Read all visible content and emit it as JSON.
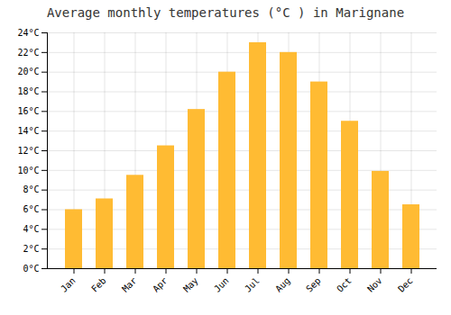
{
  "chart_data": {
    "type": "bar",
    "title": "Average monthly temperatures (°C ) in Marignane",
    "categories": [
      "Jan",
      "Feb",
      "Mar",
      "Apr",
      "May",
      "Jun",
      "Jul",
      "Aug",
      "Sep",
      "Oct",
      "Nov",
      "Dec"
    ],
    "values": [
      6.0,
      7.1,
      9.5,
      12.5,
      16.2,
      20.0,
      23.0,
      22.0,
      19.0,
      15.0,
      9.9,
      6.5
    ],
    "color": "#FFBB33",
    "ylim": [
      0,
      24
    ],
    "yticks": [
      {
        "value": 0,
        "label": "0°C"
      },
      {
        "value": 2,
        "label": "2°C"
      },
      {
        "value": 4,
        "label": "4°C"
      },
      {
        "value": 6,
        "label": "6°C"
      },
      {
        "value": 8,
        "label": "8°C"
      },
      {
        "value": 10,
        "label": "10°C"
      },
      {
        "value": 12,
        "label": "12°C"
      },
      {
        "value": 14,
        "label": "14°C"
      },
      {
        "value": 16,
        "label": "16°C"
      },
      {
        "value": 18,
        "label": "18°C"
      },
      {
        "value": 20,
        "label": "20°C"
      },
      {
        "value": 22,
        "label": "22°C"
      },
      {
        "value": 24,
        "label": "24°C"
      }
    ],
    "grid": true
  }
}
